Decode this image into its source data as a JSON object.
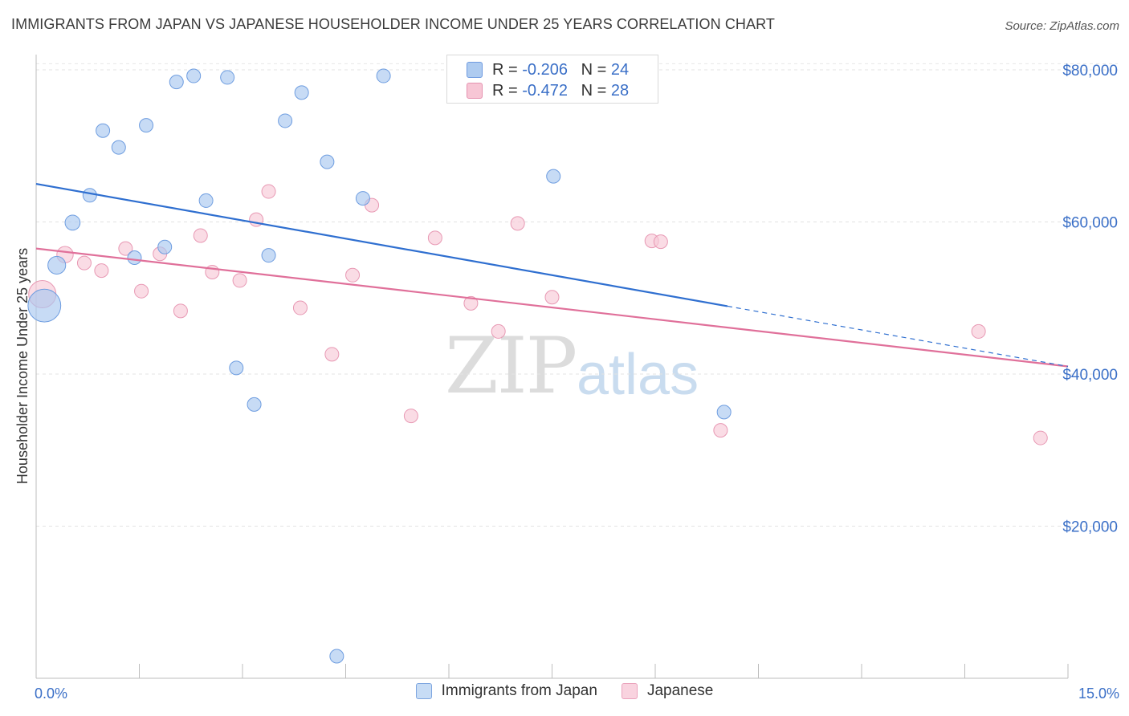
{
  "title": "IMMIGRANTS FROM JAPAN VS JAPANESE HOUSEHOLDER INCOME UNDER 25 YEARS CORRELATION CHART",
  "source": "Source: ZipAtlas.com",
  "watermark": {
    "zip": "ZIP",
    "atlas": "atlas"
  },
  "legend": {
    "rows": [
      {
        "r_label": "R = ",
        "r_value": "-0.206",
        "n_label": "N = ",
        "n_value": "24",
        "color": "#aecbf0",
        "border": "#6f9be0"
      },
      {
        "r_label": "R = ",
        "r_value": "-0.472",
        "n_label": "N = ",
        "n_value": "28",
        "color": "#f7c6d5",
        "border": "#e592b0"
      }
    ]
  },
  "bottom_legend": [
    {
      "label": "Immigrants from Japan",
      "color": "#c7dcf5",
      "border": "#7ea6e0"
    },
    {
      "label": "Japanese",
      "color": "#f9d3df",
      "border": "#eaa3bc"
    }
  ],
  "chart_data": {
    "type": "scatter",
    "title": "IMMIGRANTS FROM JAPAN VS JAPANESE HOUSEHOLDER INCOME UNDER 25 YEARS CORRELATION CHART",
    "xlabel": "",
    "ylabel": "Householder Income Under 25 years",
    "xlim": [
      0,
      15
    ],
    "ylim": [
      0,
      82000
    ],
    "x_tick_labels": [
      "0.0%",
      "15.0%"
    ],
    "y_ticks": [
      20000,
      40000,
      60000,
      80000
    ],
    "y_tick_labels": [
      "$20,000",
      "$40,000",
      "$60,000",
      "$80,000"
    ],
    "grid": true,
    "series": [
      {
        "name": "Immigrants from Japan",
        "color": "#a9c8f0",
        "stroke": "#6e9de0",
        "line_color": "#2f6fd0",
        "trend": {
          "x0": 0,
          "y0": 65000,
          "x_solid_end": 10.05,
          "x1": 15,
          "y1": 41000
        },
        "points": [
          [
            0.12,
            49000,
            2.4
          ],
          [
            0.3,
            54300,
            1.3
          ],
          [
            0.53,
            59900,
            1.1
          ],
          [
            0.78,
            63500,
            1
          ],
          [
            0.97,
            72000,
            1
          ],
          [
            1.2,
            69800,
            1
          ],
          [
            1.43,
            55300,
            1
          ],
          [
            1.6,
            72700,
            1
          ],
          [
            1.87,
            56700,
            1
          ],
          [
            2.04,
            78400,
            1
          ],
          [
            2.29,
            79200,
            1
          ],
          [
            2.47,
            62800,
            1
          ],
          [
            2.78,
            79000,
            1
          ],
          [
            2.91,
            40800,
            1
          ],
          [
            3.17,
            36000,
            1
          ],
          [
            3.38,
            55600,
            1
          ],
          [
            3.62,
            73300,
            1
          ],
          [
            3.86,
            77000,
            1
          ],
          [
            4.23,
            67900,
            1
          ],
          [
            4.37,
            2900,
            1
          ],
          [
            4.75,
            63100,
            1
          ],
          [
            5.05,
            79200,
            1
          ],
          [
            7.52,
            66000,
            1
          ],
          [
            10.0,
            35000,
            1
          ]
        ]
      },
      {
        "name": "Japanese",
        "color": "#f7c9d7",
        "stroke": "#e899b4",
        "line_color": "#e0709a",
        "trend": {
          "x0": 0,
          "y0": 56500,
          "x1": 15,
          "y1": 41000
        },
        "points": [
          [
            0.09,
            50500,
            2.0
          ],
          [
            0.42,
            55700,
            1.2
          ],
          [
            0.7,
            54600,
            1
          ],
          [
            0.95,
            53600,
            1
          ],
          [
            1.3,
            56500,
            1
          ],
          [
            1.53,
            50900,
            1
          ],
          [
            1.8,
            55800,
            1
          ],
          [
            2.1,
            48300,
            1
          ],
          [
            2.39,
            58200,
            1
          ],
          [
            2.56,
            53400,
            1
          ],
          [
            2.96,
            52300,
            1
          ],
          [
            3.2,
            60300,
            1
          ],
          [
            3.38,
            64000,
            1
          ],
          [
            3.84,
            48700,
            1
          ],
          [
            4.3,
            42600,
            1
          ],
          [
            4.6,
            53000,
            1
          ],
          [
            4.88,
            62200,
            1
          ],
          [
            5.45,
            34500,
            1
          ],
          [
            5.8,
            57900,
            1
          ],
          [
            6.32,
            49300,
            1
          ],
          [
            6.72,
            45600,
            1
          ],
          [
            7.0,
            59800,
            1
          ],
          [
            7.5,
            50100,
            1
          ],
          [
            8.95,
            57500,
            1
          ],
          [
            9.08,
            57400,
            1
          ],
          [
            9.95,
            32600,
            1
          ],
          [
            13.7,
            45600,
            1
          ],
          [
            14.6,
            31600,
            1
          ]
        ]
      }
    ]
  }
}
